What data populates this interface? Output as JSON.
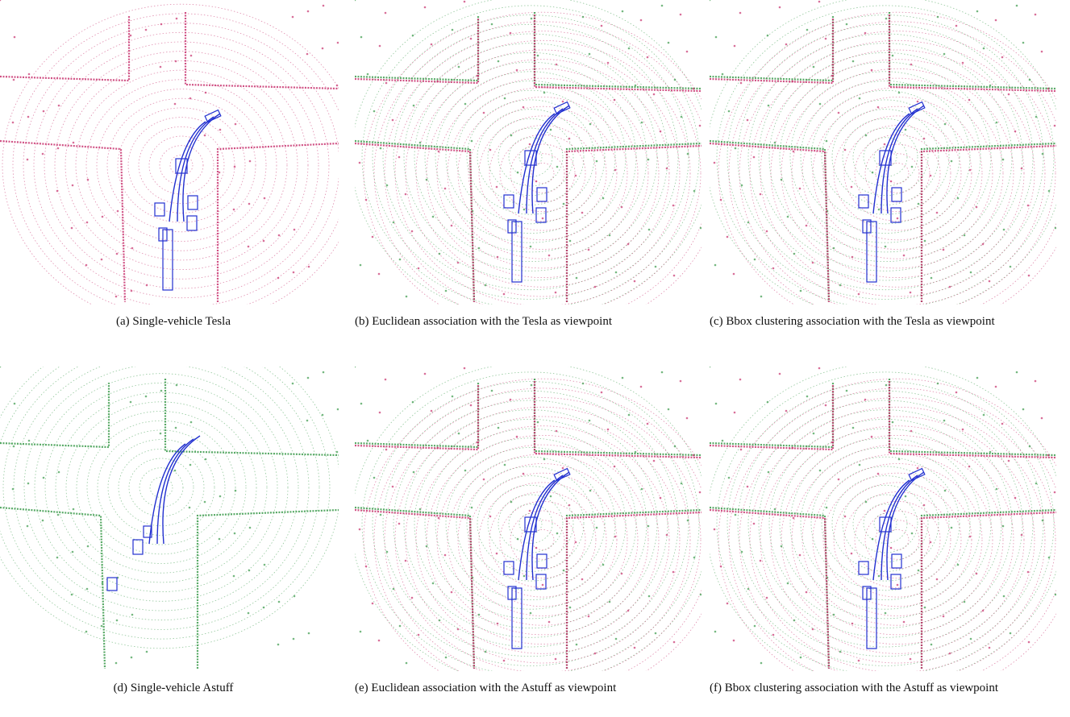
{
  "figure": {
    "panels": [
      {
        "label": "(a)",
        "caption": "Single-vehicle Tesla"
      },
      {
        "label": "(b)",
        "caption": "Euclidean association with the Tesla as viewpoint"
      },
      {
        "label": "(c)",
        "caption": "Bbox clustering association with the Tesla as viewpoint"
      },
      {
        "label": "(d)",
        "caption": "Single-vehicle Astuff"
      },
      {
        "label": "(e)",
        "caption": "Euclidean association with the Astuff as viewpoint"
      },
      {
        "label": "(f)",
        "caption": "Bbox clustering association with the Astuff as viewpoint"
      }
    ]
  }
}
